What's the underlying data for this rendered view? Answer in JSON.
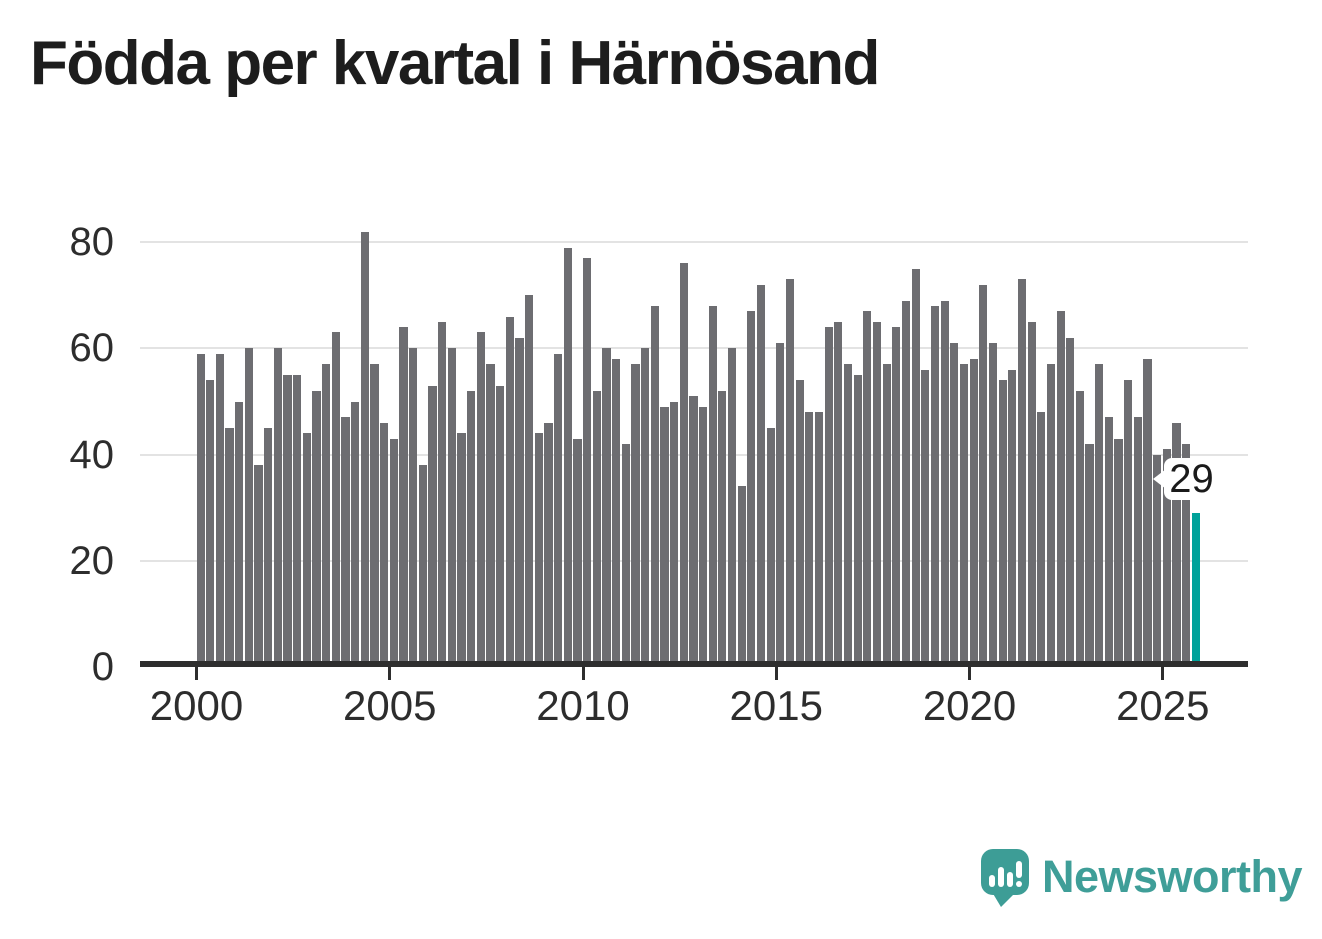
{
  "title": "Födda per kvartal i Härnösand",
  "chart_data": {
    "type": "bar",
    "title": "Födda per kvartal i Härnösand",
    "x_start": "2000-Q1",
    "x_end": "2025-Q4",
    "frequency": "quarterly",
    "series": [
      {
        "name": "Födda per kvartal",
        "values": [
          59,
          54,
          59,
          45,
          50,
          60,
          38,
          45,
          60,
          55,
          55,
          44,
          52,
          57,
          63,
          47,
          50,
          82,
          57,
          46,
          43,
          64,
          60,
          38,
          53,
          65,
          60,
          44,
          52,
          63,
          57,
          53,
          66,
          62,
          70,
          44,
          46,
          59,
          79,
          43,
          77,
          52,
          60,
          58,
          42,
          57,
          60,
          68,
          49,
          50,
          76,
          51,
          49,
          68,
          52,
          60,
          34,
          67,
          72,
          45,
          61,
          73,
          54,
          48,
          48,
          64,
          65,
          57,
          55,
          67,
          65,
          57,
          64,
          69,
          75,
          56,
          68,
          69,
          61,
          57,
          58,
          72,
          61,
          54,
          56,
          73,
          65,
          48,
          57,
          67,
          62,
          52,
          42,
          57,
          47,
          43,
          54,
          47,
          58,
          40,
          41,
          46,
          42,
          29
        ]
      }
    ],
    "start_year": 2000,
    "quarters_per_year": 4,
    "yticks": [
      0,
      20,
      40,
      60,
      80
    ],
    "xticks": [
      2000,
      2005,
      2010,
      2015,
      2020,
      2025
    ],
    "ylim": [
      0,
      82
    ],
    "grid": true,
    "legend": false,
    "bar_color": "#6d6d71",
    "highlight_color": "#00a29a",
    "highlight_index": 103,
    "annotation_label": "29"
  },
  "logo": {
    "text": "Newsworthy",
    "color": "#3f9e98"
  }
}
